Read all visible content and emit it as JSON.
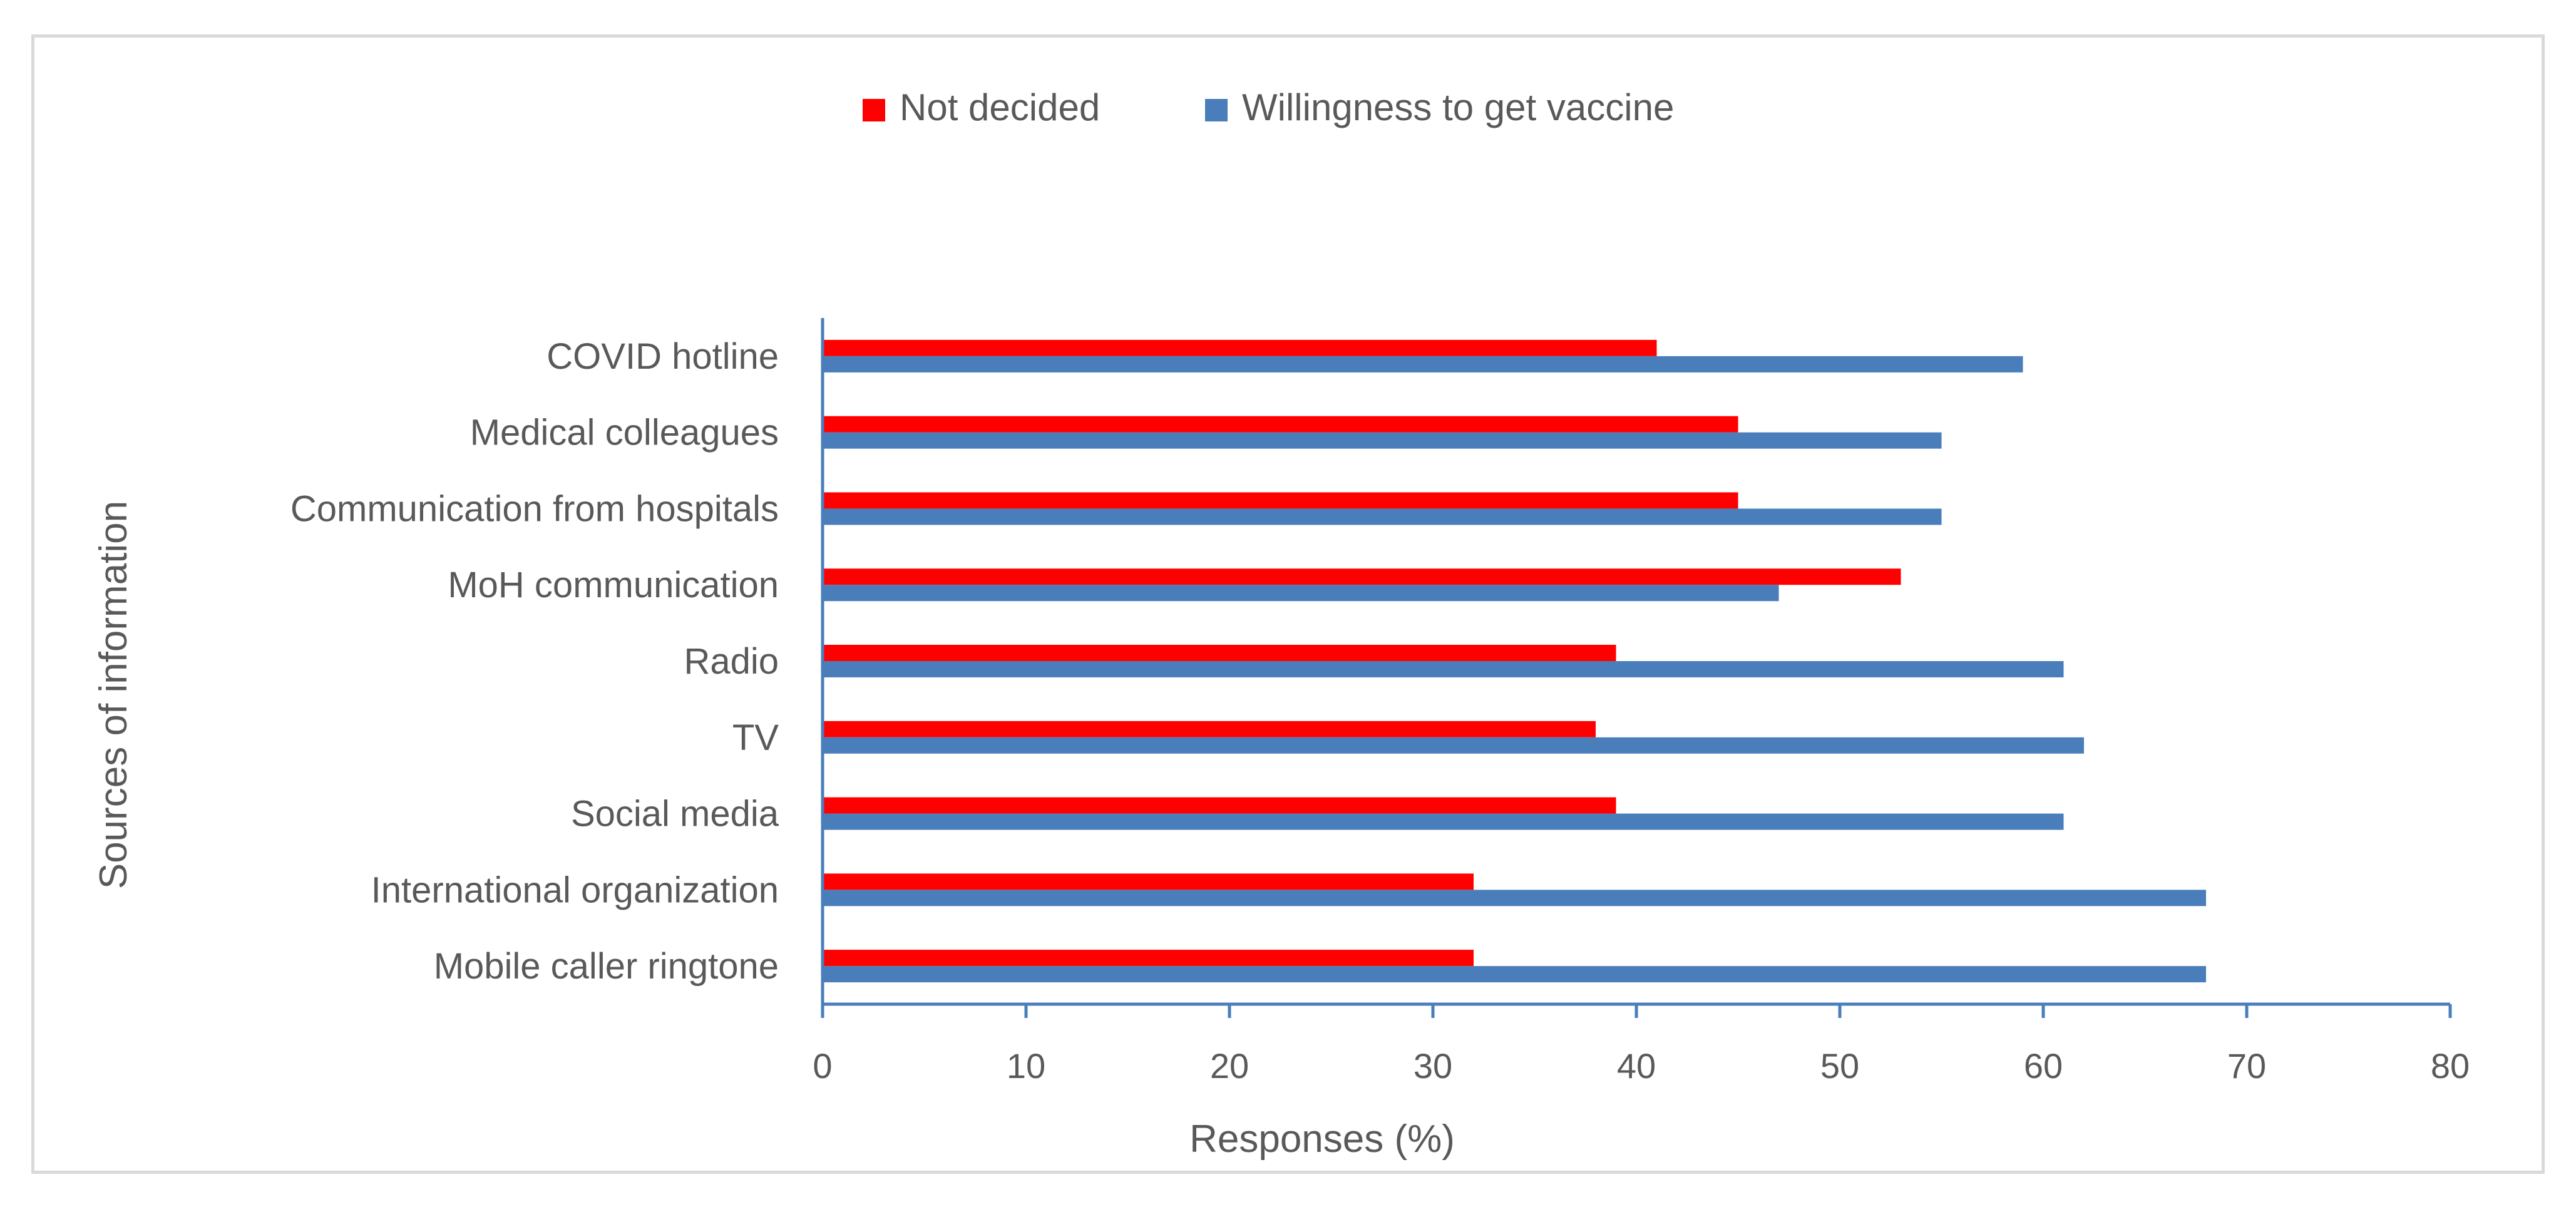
{
  "chart_data": {
    "type": "bar",
    "orientation": "horizontal",
    "title": "",
    "xlabel": "Responses (%)",
    "ylabel": "Sources of information",
    "xlim": [
      0,
      80
    ],
    "x_ticks": [
      0,
      10,
      20,
      30,
      40,
      50,
      60,
      70,
      80
    ],
    "grid": false,
    "legend_position": "top-center",
    "categories": [
      "COVID hotline",
      "Medical colleagues",
      "Communication from hospitals",
      "MoH communication",
      "Radio",
      "TV",
      "Social media",
      "International organization",
      "Mobile caller ringtone"
    ],
    "series": [
      {
        "name": "Not decided",
        "color": "#ff0000",
        "values": [
          41,
          45,
          45,
          53,
          39,
          38,
          39,
          32,
          32
        ]
      },
      {
        "name": "Willingness to get vaccine",
        "color": "#4a7ebb",
        "values": [
          59,
          55,
          55,
          47,
          61,
          62,
          61,
          68,
          68
        ]
      }
    ]
  },
  "colors": {
    "axis": "#4a7ebb",
    "text": "#595959",
    "frame": "#d9d9d9"
  }
}
